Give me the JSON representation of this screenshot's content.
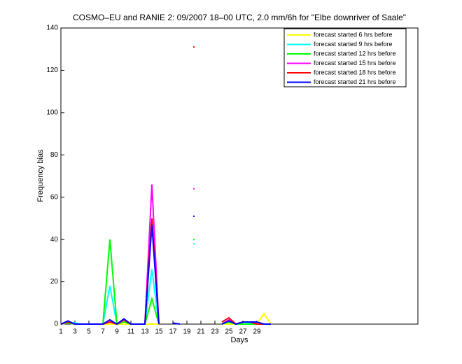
{
  "chart_data": {
    "type": "line",
    "title": "COSMO–EU and RANIE 2: 09/2007 18–00 UTC, 2.0 mm/6h for \"Elbe downriver of Saale\"",
    "x_label": "Days",
    "y_label": "Frequency bias",
    "x": [
      1,
      2,
      3,
      4,
      5,
      6,
      7,
      8,
      9,
      10,
      11,
      12,
      13,
      14,
      15,
      16,
      17,
      18,
      19,
      20,
      21,
      22,
      23,
      24,
      25,
      26,
      27,
      28,
      29,
      30,
      31
    ],
    "xlim": [
      1,
      52
    ],
    "ylim": [
      0,
      140
    ],
    "xticks": [
      1,
      3,
      5,
      7,
      9,
      11,
      13,
      15,
      17,
      19,
      21,
      23,
      25,
      27,
      29
    ],
    "yticks": [
      0,
      20,
      40,
      60,
      80,
      100,
      120,
      140
    ],
    "legend_position": "upper right",
    "series": [
      {
        "name": "forecast started 6 hrs before",
        "color": "#ffff00",
        "values": [
          0,
          0.5,
          0,
          0,
          0,
          0,
          0,
          0,
          0,
          0,
          0,
          0,
          0,
          0,
          0,
          null,
          null,
          null,
          null,
          null,
          null,
          null,
          null,
          0,
          0,
          0,
          0,
          0,
          0,
          5,
          0
        ]
      },
      {
        "name": "forecast started 9 hrs before",
        "color": "#00ffff",
        "values": [
          0,
          1,
          0.5,
          0,
          0,
          0,
          0,
          18,
          0,
          1,
          0,
          0,
          0,
          26,
          0,
          null,
          null,
          null,
          null,
          38,
          null,
          null,
          null,
          0,
          1,
          0,
          0,
          0.5,
          0,
          0,
          0
        ]
      },
      {
        "name": "forecast started 12 hrs before",
        "color": "#00ff00",
        "values": [
          0,
          0.5,
          0,
          0,
          0,
          0,
          0,
          40,
          0,
          1,
          0,
          0,
          0,
          12,
          0,
          null,
          null,
          null,
          null,
          40,
          null,
          null,
          null,
          0,
          1,
          0,
          0,
          0,
          0,
          0,
          0
        ]
      },
      {
        "name": "forecast started 15 hrs before",
        "color": "#ff00ff",
        "values": [
          0,
          1,
          0,
          0,
          0,
          0,
          0,
          1,
          0,
          2,
          0,
          0,
          0,
          66,
          0,
          null,
          null,
          null,
          null,
          64,
          null,
          null,
          null,
          0,
          2,
          0,
          1,
          1,
          0,
          0,
          0
        ]
      },
      {
        "name": "forecast started 18 hrs before",
        "color": "#ff0000",
        "values": [
          0,
          1,
          0,
          0,
          0,
          0,
          0,
          1,
          0,
          2,
          0,
          0,
          0,
          50,
          0,
          null,
          null,
          null,
          null,
          131,
          null,
          null,
          null,
          1,
          3,
          0,
          1,
          1,
          0,
          0,
          0
        ]
      },
      {
        "name": "forecast started 21 hrs before",
        "color": "#0000ff",
        "values": [
          0,
          1.5,
          0,
          0,
          0,
          0,
          0,
          2,
          0,
          2.5,
          0,
          0,
          0,
          47,
          0,
          null,
          0.5,
          0,
          null,
          51,
          null,
          null,
          null,
          0,
          1.5,
          0,
          1,
          1,
          1,
          0,
          0
        ]
      }
    ]
  }
}
